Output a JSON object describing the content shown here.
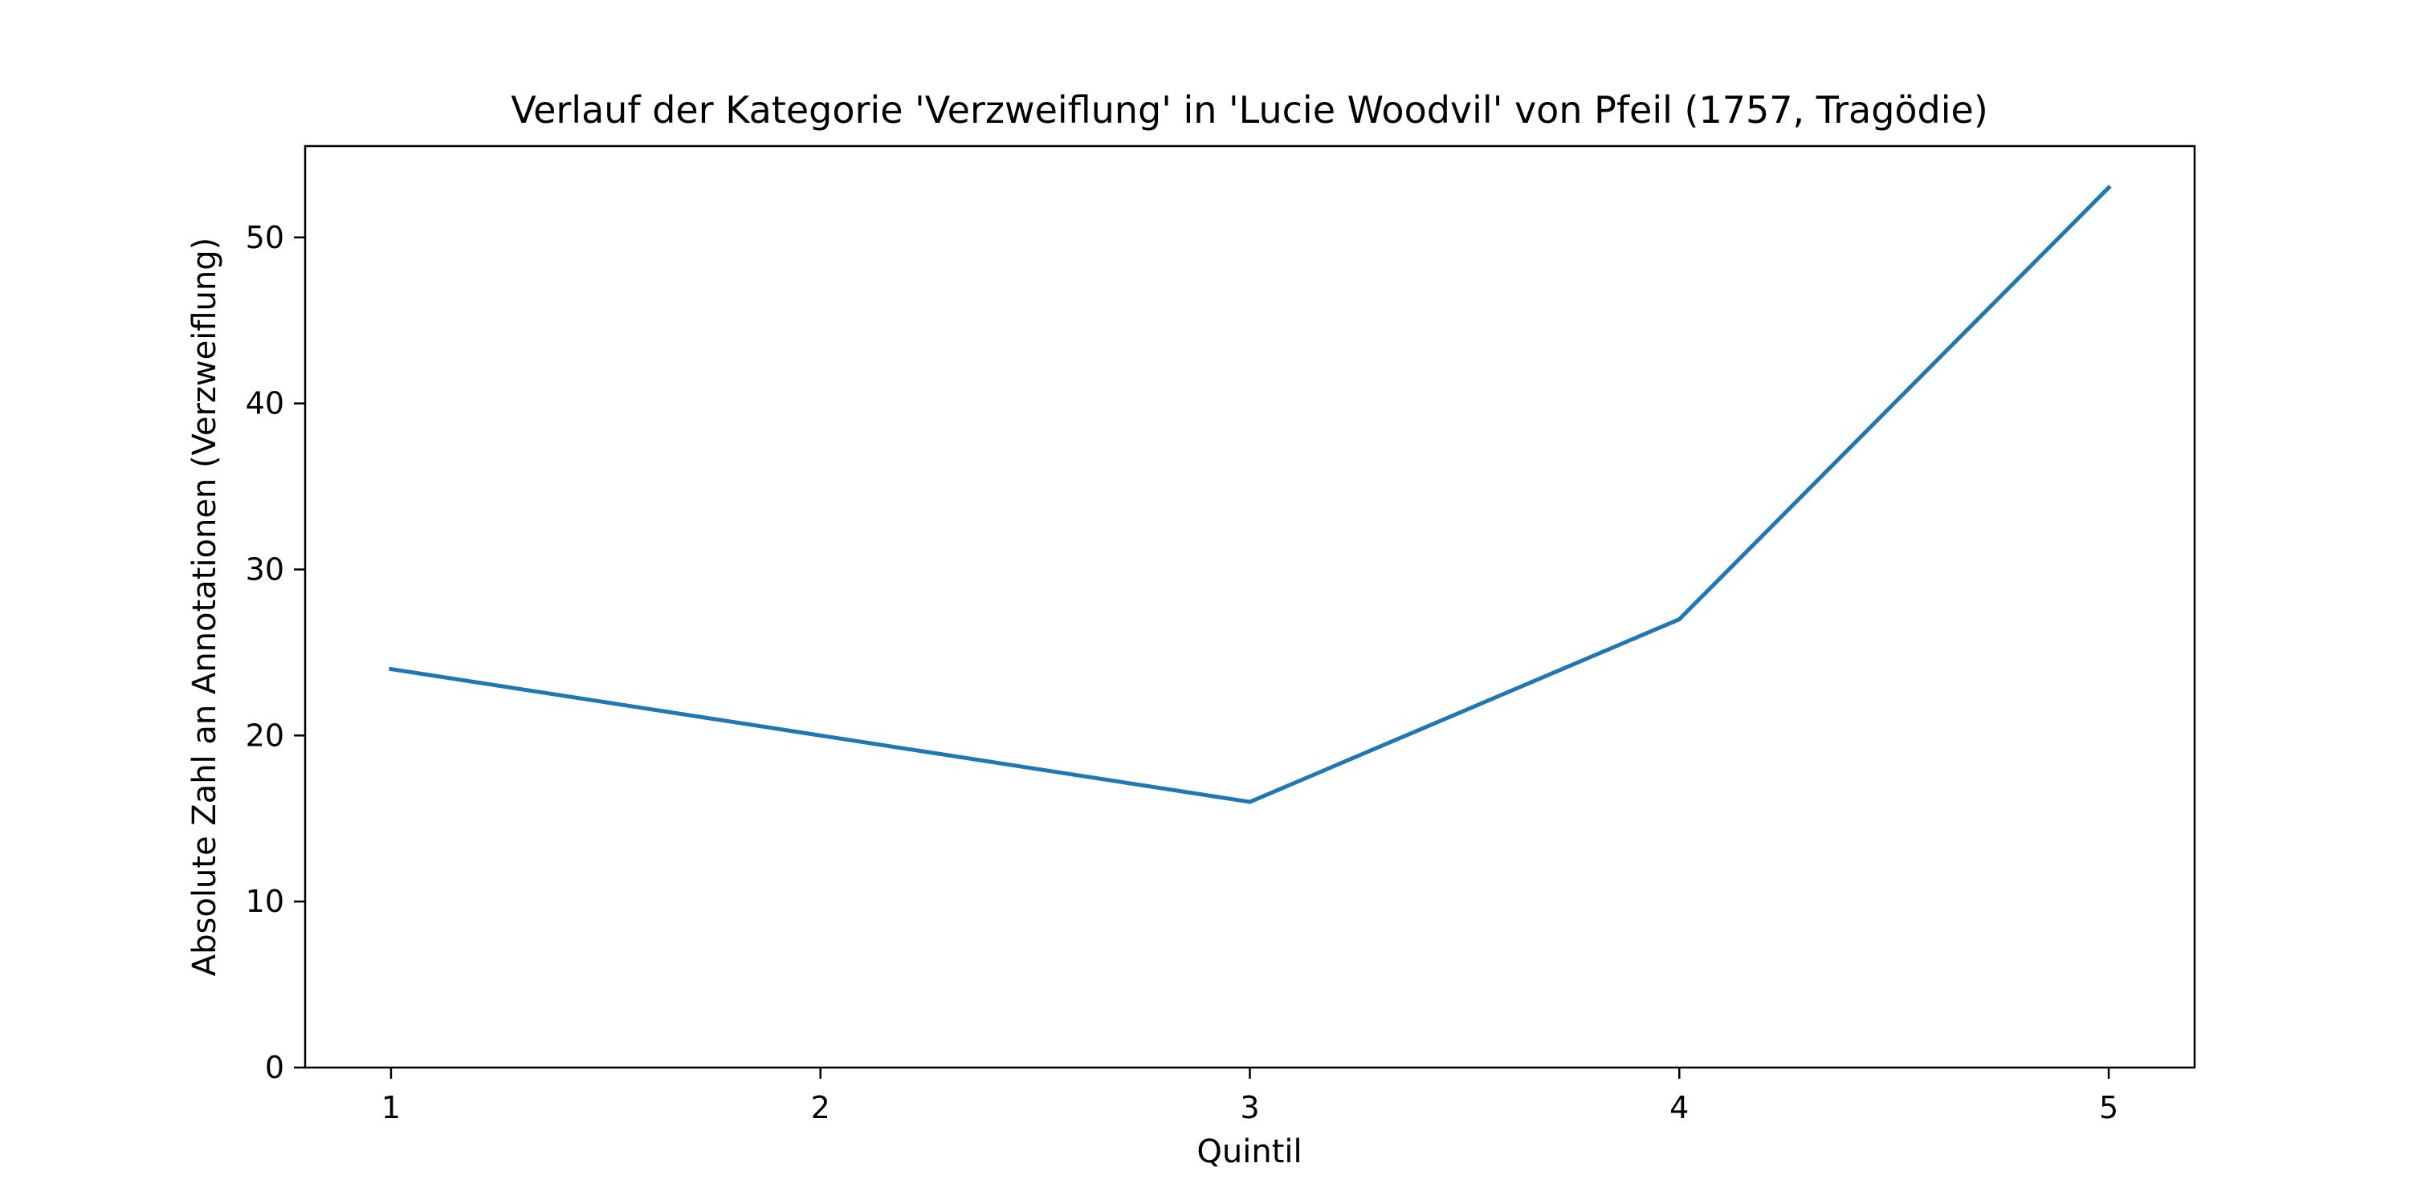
{
  "chart_data": {
    "type": "line",
    "title": "Verlauf der Kategorie 'Verzweiflung' in 'Lucie Woodvil' von Pfeil (1757, Tragödie)",
    "xlabel": "Quintil",
    "ylabel": "Absolute Zahl an Annotationen (Verzweiflung)",
    "x": [
      1,
      2,
      3,
      4,
      5
    ],
    "x_tick_labels": [
      "1",
      "2",
      "3",
      "4",
      "5"
    ],
    "xlim": [
      0.8,
      5.2
    ],
    "ylim": [
      0,
      55.5
    ],
    "y_ticks": [
      0,
      10,
      20,
      30,
      40,
      50
    ],
    "y_tick_labels": [
      "0",
      "10",
      "20",
      "30",
      "40",
      "50"
    ],
    "series": [
      {
        "values": [
          24,
          20,
          16,
          27,
          53
        ],
        "color": "#1f77b4"
      }
    ],
    "grid": false
  }
}
